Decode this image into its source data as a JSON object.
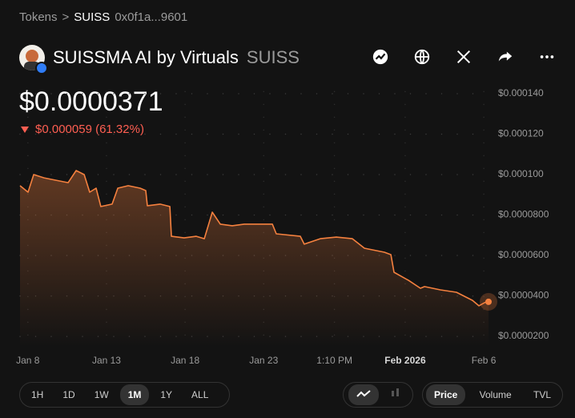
{
  "breadcrumb": {
    "root": "Tokens",
    "symbol": "SUISS",
    "address": "0x0f1a...9601"
  },
  "token": {
    "name": "SUISSMA AI by Virtuals",
    "symbol": "SUISS",
    "price": "$0.0000371",
    "change": "$0.000059 (61.32%)"
  },
  "chart_data": {
    "type": "line",
    "x": [
      -0.5,
      0.01,
      0.37,
      1.03,
      1.79,
      2.56,
      3.07,
      3.58,
      3.93,
      4.34,
      4.64,
      5.36,
      5.72,
      6.38,
      7.14,
      7.5,
      7.6,
      8.41,
      9.03,
      9.13,
      9.94,
      10.71,
      11.22,
      11.73,
      12.24,
      13.0,
      13.76,
      14.53,
      15.55,
      15.8,
      17.33,
      17.58,
      18.6,
      19.62,
      20.64,
      21.41,
      22.68,
      23.09,
      23.29,
      24.21,
      24.97,
      25.23,
      26.24,
      27.26,
      28.28,
      28.69,
      29.05,
      29.3
    ],
    "series": [
      {
        "name": "Price",
        "color": "#f5813f",
        "values": [
          9.45e-05,
          9.13e-05,
          0.0001,
          9.84e-05,
          9.72e-05,
          9.6e-05,
          0.000102,
          0.0001,
          9.13e-05,
          9.33e-05,
          8.42e-05,
          8.54e-05,
          9.33e-05,
          9.45e-05,
          9.33e-05,
          9.21e-05,
          8.46e-05,
          8.54e-05,
          8.42e-05,
          6.95e-05,
          6.87e-05,
          6.95e-05,
          6.83e-05,
          8.14e-05,
          7.55e-05,
          7.47e-05,
          7.55e-05,
          7.55e-05,
          7.55e-05,
          7.07e-05,
          6.95e-05,
          6.56e-05,
          6.83e-05,
          6.91e-05,
          6.83e-05,
          6.36e-05,
          6.16e-05,
          6.04e-05,
          5.17e-05,
          4.77e-05,
          4.38e-05,
          4.46e-05,
          4.3e-05,
          4.18e-05,
          3.78e-05,
          3.51e-05,
          3.67e-05,
          3.71e-05
        ]
      }
    ],
    "xlim": [
      -0.5,
      29.3
    ],
    "xticks": [
      {
        "value": 0,
        "label": "Jan 8"
      },
      {
        "value": 5,
        "label": "Jan 13"
      },
      {
        "value": 10,
        "label": "Jan 18"
      },
      {
        "value": 15,
        "label": "Jan 23"
      },
      {
        "value": 19.5,
        "label": "1:10 PM"
      },
      {
        "value": 24,
        "label": "Feb 2026",
        "emphasis": true
      },
      {
        "value": 29,
        "label": "Feb 6"
      }
    ],
    "ylim": [
      1.5e-05,
      0.000145
    ],
    "yticks": [
      {
        "value": 0.00014,
        "label": "$0.000140"
      },
      {
        "value": 0.00012,
        "label": "$0.000120"
      },
      {
        "value": 0.0001,
        "label": "$0.000100"
      },
      {
        "value": 8e-05,
        "label": "$0.0000800"
      },
      {
        "value": 6e-05,
        "label": "$0.0000600"
      },
      {
        "value": 4e-05,
        "label": "$0.0000400"
      },
      {
        "value": 2e-05,
        "label": "$0.0000200"
      }
    ],
    "grid": true
  },
  "controls": {
    "ranges": [
      "1H",
      "1D",
      "1W",
      "1M",
      "1Y",
      "ALL"
    ],
    "metrics": [
      "Price",
      "Volume",
      "TVL"
    ]
  }
}
